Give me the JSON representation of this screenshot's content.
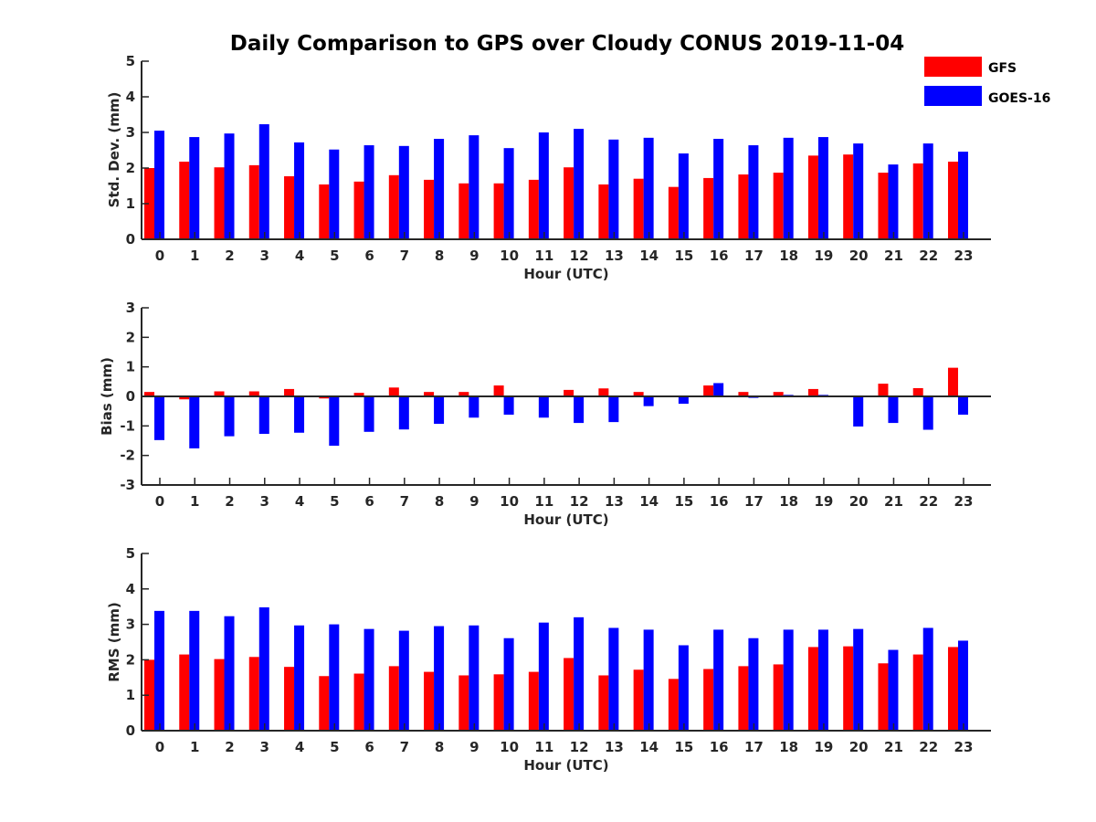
{
  "title": "Daily Comparison to GPS over Cloudy CONUS 2019-11-04",
  "legend": [
    {
      "name": "GFS",
      "color": "#ff0000"
    },
    {
      "name": "GOES-16",
      "color": "#0000ff"
    }
  ],
  "chart_data": [
    {
      "type": "bar",
      "title": "Daily Comparison to GPS over Cloudy CONUS 2019-11-04",
      "xlabel": "Hour (UTC)",
      "ylabel": "Std. Dev. (mm)",
      "ylim": [
        0,
        5
      ],
      "yticks": [
        "0",
        "1",
        "2",
        "3",
        "4",
        "5"
      ],
      "categories": [
        "0",
        "1",
        "2",
        "3",
        "4",
        "5",
        "6",
        "7",
        "8",
        "9",
        "10",
        "11",
        "12",
        "13",
        "14",
        "15",
        "16",
        "17",
        "18",
        "19",
        "20",
        "21",
        "22",
        "23"
      ],
      "series": [
        {
          "name": "GFS",
          "color": "#ff0000",
          "values": [
            2.0,
            2.18,
            2.02,
            2.08,
            1.77,
            1.54,
            1.62,
            1.8,
            1.67,
            1.57,
            1.57,
            1.67,
            2.02,
            1.54,
            1.7,
            1.47,
            1.72,
            1.82,
            1.87,
            2.35,
            2.38,
            1.87,
            2.13,
            2.18
          ]
        },
        {
          "name": "GOES-16",
          "color": "#0000ff",
          "values": [
            3.05,
            2.87,
            2.97,
            3.23,
            2.72,
            2.52,
            2.64,
            2.62,
            2.82,
            2.92,
            2.56,
            3.0,
            3.1,
            2.8,
            2.85,
            2.41,
            2.82,
            2.64,
            2.85,
            2.87,
            2.69,
            2.1,
            2.69,
            2.46
          ]
        }
      ]
    },
    {
      "type": "bar",
      "xlabel": "Hour (UTC)",
      "ylabel": "Bias (mm)",
      "ylim": [
        -3,
        3
      ],
      "yticks": [
        "-3",
        "-2",
        "-1",
        "0",
        "1",
        "2",
        "3"
      ],
      "categories": [
        "0",
        "1",
        "2",
        "3",
        "4",
        "5",
        "6",
        "7",
        "8",
        "9",
        "10",
        "11",
        "12",
        "13",
        "14",
        "15",
        "16",
        "17",
        "18",
        "19",
        "20",
        "21",
        "22",
        "23"
      ],
      "series": [
        {
          "name": "GFS",
          "color": "#ff0000",
          "values": [
            0.15,
            -0.1,
            0.17,
            0.17,
            0.25,
            -0.07,
            0.12,
            0.3,
            0.15,
            0.15,
            0.37,
            0.03,
            0.22,
            0.27,
            0.15,
            0.0,
            0.37,
            0.15,
            0.15,
            0.25,
            0.0,
            0.43,
            0.28,
            0.97
          ]
        },
        {
          "name": "GOES-16",
          "color": "#0000ff",
          "values": [
            -1.48,
            -1.76,
            -1.35,
            -1.27,
            -1.23,
            -1.67,
            -1.2,
            -1.12,
            -0.93,
            -0.72,
            -0.62,
            -0.72,
            -0.9,
            -0.87,
            -0.33,
            -0.25,
            0.45,
            -0.05,
            0.05,
            0.05,
            -1.02,
            -0.9,
            -1.13,
            -0.62
          ]
        }
      ]
    },
    {
      "type": "bar",
      "xlabel": "Hour (UTC)",
      "ylabel": "RMS (mm)",
      "ylim": [
        0,
        5
      ],
      "yticks": [
        "0",
        "1",
        "2",
        "3",
        "4",
        "5"
      ],
      "categories": [
        "0",
        "1",
        "2",
        "3",
        "4",
        "5",
        "6",
        "7",
        "8",
        "9",
        "10",
        "11",
        "12",
        "13",
        "14",
        "15",
        "16",
        "17",
        "18",
        "19",
        "20",
        "21",
        "22",
        "23"
      ],
      "series": [
        {
          "name": "GFS",
          "color": "#ff0000",
          "values": [
            2.0,
            2.15,
            2.02,
            2.08,
            1.8,
            1.54,
            1.61,
            1.82,
            1.66,
            1.56,
            1.59,
            1.66,
            2.05,
            1.56,
            1.72,
            1.46,
            1.74,
            1.82,
            1.87,
            2.36,
            2.38,
            1.9,
            2.15,
            2.36
          ]
        },
        {
          "name": "GOES-16",
          "color": "#0000ff",
          "values": [
            3.38,
            3.38,
            3.23,
            3.48,
            2.97,
            3.0,
            2.87,
            2.82,
            2.95,
            2.97,
            2.61,
            3.05,
            3.2,
            2.9,
            2.85,
            2.41,
            2.85,
            2.61,
            2.85,
            2.85,
            2.87,
            2.28,
            2.9,
            2.54
          ]
        }
      ]
    }
  ]
}
